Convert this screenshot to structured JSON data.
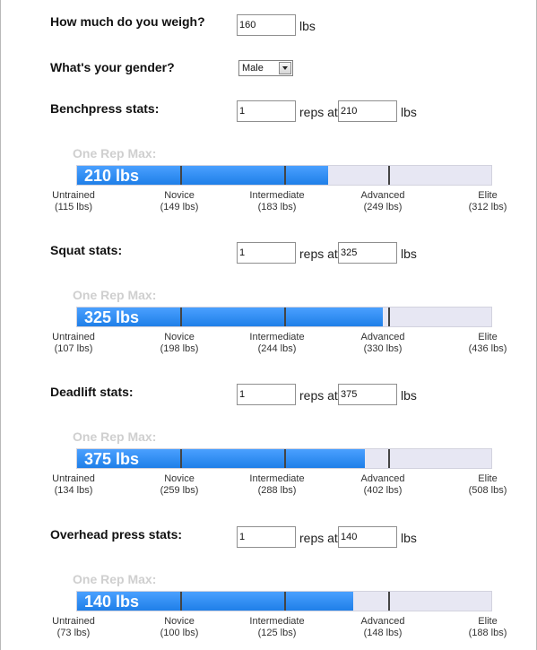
{
  "weight": {
    "label": "How much do you weigh?",
    "value": "160",
    "unit": "lbs"
  },
  "gender": {
    "label": "What's your gender?",
    "selected": "Male"
  },
  "reps_word": "reps at",
  "unit": "lbs",
  "one_rep_max_label": "One Rep Max:",
  "level_names": [
    "Untrained",
    "Novice",
    "Intermediate",
    "Advanced",
    "Elite"
  ],
  "lifts": [
    {
      "label": "Benchpress stats:",
      "reps": "1",
      "weight": "210",
      "one_rep_max": "210 lbs",
      "one_rep_max_value": 210,
      "levels": [
        "(115 lbs)",
        "(149 lbs)",
        "(183 lbs)",
        "(249 lbs)",
        "(312 lbs)"
      ],
      "level_values": [
        115,
        149,
        183,
        249,
        312
      ]
    },
    {
      "label": "Squat stats:",
      "reps": "1",
      "weight": "325",
      "one_rep_max": "325 lbs",
      "one_rep_max_value": 325,
      "levels": [
        "(107 lbs)",
        "(198 lbs)",
        "(244 lbs)",
        "(330 lbs)",
        "(436 lbs)"
      ],
      "level_values": [
        107,
        198,
        244,
        330,
        436
      ]
    },
    {
      "label": "Deadlift stats:",
      "reps": "1",
      "weight": "375",
      "one_rep_max": "375 lbs",
      "one_rep_max_value": 375,
      "levels": [
        "(134 lbs)",
        "(259 lbs)",
        "(288 lbs)",
        "(402 lbs)",
        "(508 lbs)"
      ],
      "level_values": [
        134,
        259,
        288,
        402,
        508
      ]
    },
    {
      "label": "Overhead press stats:",
      "reps": "1",
      "weight": "140",
      "one_rep_max": "140 lbs",
      "one_rep_max_value": 140,
      "levels": [
        "(73 lbs)",
        "(100 lbs)",
        "(125 lbs)",
        "(148 lbs)",
        "(188 lbs)"
      ],
      "level_values": [
        73,
        100,
        125,
        148,
        188
      ]
    }
  ],
  "colors": {
    "bar_fill": "#2b8cf5",
    "bar_track": "#e7e7f3",
    "one_rep_max_label": "#cfcfcf"
  }
}
